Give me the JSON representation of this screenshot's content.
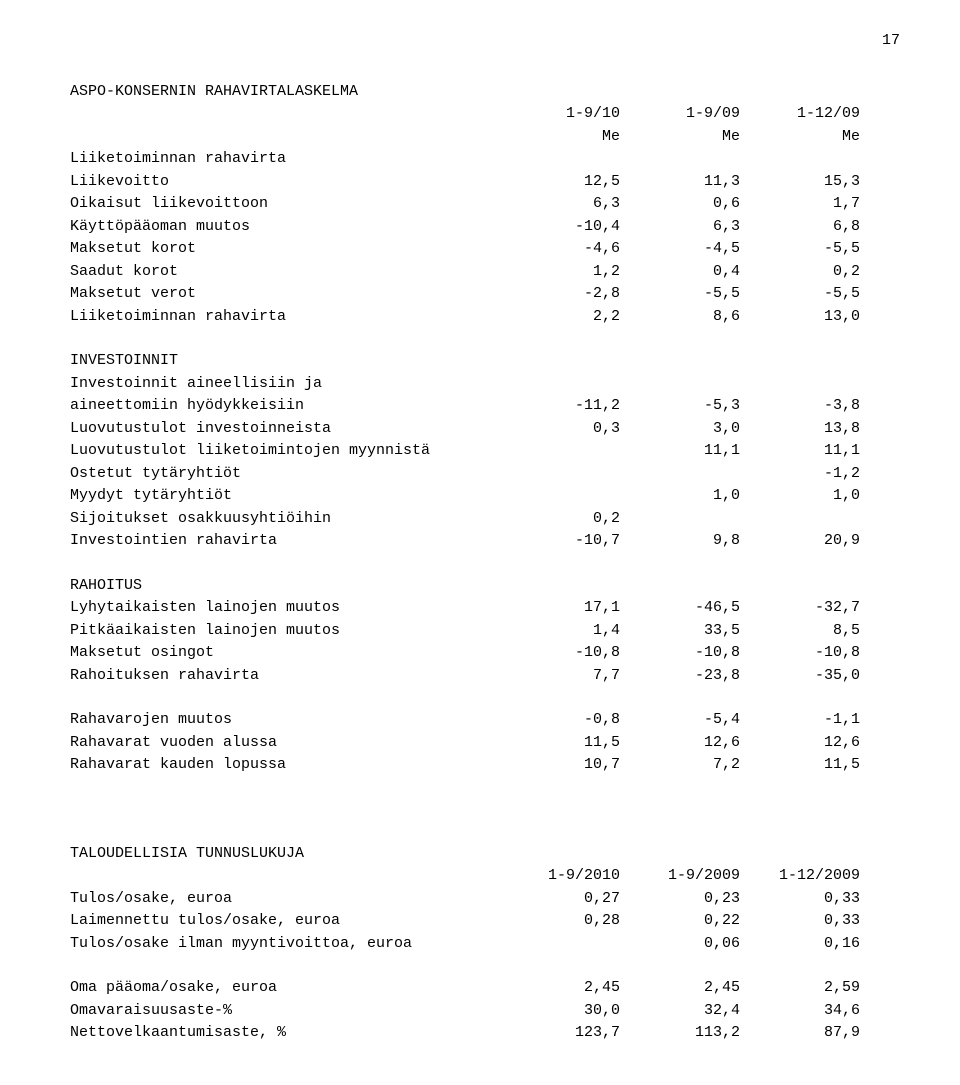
{
  "page_number": "17",
  "title": "ASPO-KONSERNIN RAHAVIRTALASKELMA",
  "periods": {
    "p1": "1-9/10",
    "p2": "1-9/09",
    "p3": "1-12/09"
  },
  "unit": "Me",
  "sec1": {
    "title": "Liiketoiminnan rahavirta",
    "r1": {
      "label": "Liikevoitto",
      "c1": "12,5",
      "c2": "11,3",
      "c3": "15,3"
    },
    "r2": {
      "label": "Oikaisut liikevoittoon",
      "c1": "6,3",
      "c2": "0,6",
      "c3": "1,7"
    },
    "r3": {
      "label": "Käyttöpääoman muutos",
      "c1": "-10,4",
      "c2": "6,3",
      "c3": "6,8"
    },
    "r4": {
      "label": "Maksetut korot",
      "c1": "-4,6",
      "c2": "-4,5",
      "c3": "-5,5"
    },
    "r5": {
      "label": "Saadut korot",
      "c1": "1,2",
      "c2": "0,4",
      "c3": "0,2"
    },
    "r6": {
      "label": "Maksetut verot",
      "c1": "-2,8",
      "c2": "-5,5",
      "c3": "-5,5"
    },
    "r7": {
      "label": "Liiketoiminnan rahavirta",
      "c1": "2,2",
      "c2": "8,6",
      "c3": "13,0"
    }
  },
  "sec2": {
    "title": "INVESTOINNIT",
    "r1_line1": "Investoinnit aineellisiin ja",
    "r1": {
      "label": "aineettomiin hyödykkeisiin",
      "c1": "-11,2",
      "c2": "-5,3",
      "c3": "-3,8"
    },
    "r2": {
      "label": "Luovutustulot investoinneista",
      "c1": "0,3",
      "c2": "3,0",
      "c3": "13,8"
    },
    "r3": {
      "label": "Luovutustulot liiketoimintojen myynnistä",
      "c1": "",
      "c2": "11,1",
      "c3": "11,1"
    },
    "r4": {
      "label": "Ostetut tytäryhtiöt",
      "c1": "",
      "c2": "",
      "c3": "-1,2"
    },
    "r5": {
      "label": "Myydyt tytäryhtiöt",
      "c1": "",
      "c2": "1,0",
      "c3": "1,0"
    },
    "r6": {
      "label": "Sijoitukset osakkuusyhtiöihin",
      "c1": "0,2",
      "c2": "",
      "c3": ""
    },
    "r7": {
      "label": "Investointien rahavirta",
      "c1": "-10,7",
      "c2": "9,8",
      "c3": "20,9"
    }
  },
  "sec3": {
    "title": "RAHOITUS",
    "r1": {
      "label": "Lyhytaikaisten lainojen muutos",
      "c1": "17,1",
      "c2": "-46,5",
      "c3": "-32,7"
    },
    "r2": {
      "label": "Pitkäaikaisten lainojen muutos",
      "c1": "1,4",
      "c2": "33,5",
      "c3": "8,5"
    },
    "r3": {
      "label": "Maksetut osingot",
      "c1": "-10,8",
      "c2": "-10,8",
      "c3": "-10,8"
    },
    "r4": {
      "label": "Rahoituksen rahavirta",
      "c1": "7,7",
      "c2": "-23,8",
      "c3": "-35,0"
    }
  },
  "sec4": {
    "r1": {
      "label": "Rahavarojen muutos",
      "c1": "-0,8",
      "c2": "-5,4",
      "c3": "-1,1"
    },
    "r2": {
      "label": "Rahavarat vuoden alussa",
      "c1": "11,5",
      "c2": "12,6",
      "c3": "12,6"
    },
    "r3": {
      "label": "Rahavarat kauden lopussa",
      "c1": "10,7",
      "c2": "7,2",
      "c3": "11,5"
    }
  },
  "kpi": {
    "title": "TALOUDELLISIA TUNNUSLUKUJA",
    "periods": {
      "p1": "1-9/2010",
      "p2": "1-9/2009",
      "p3": "1-12/2009"
    },
    "r1": {
      "label": "Tulos/osake, euroa",
      "c1": "0,27",
      "c2": "0,23",
      "c3": "0,33"
    },
    "r2": {
      "label": "Laimennettu tulos/osake, euroa",
      "c1": "0,28",
      "c2": "0,22",
      "c3": "0,33"
    },
    "r3": {
      "label": "Tulos/osake ilman myyntivoittoa, euroa",
      "c1": "",
      "c2": "0,06",
      "c3": "0,16"
    },
    "r4": {
      "label": "Oma pääoma/osake, euroa",
      "c1": "2,45",
      "c2": "2,45",
      "c3": "2,59"
    },
    "r5": {
      "label": "Omavaraisuusaste-%",
      "c1": "30,0",
      "c2": "32,4",
      "c3": "34,6"
    },
    "r6": {
      "label": "Nettovelkaantumisaste, %",
      "c1": "123,7",
      "c2": "113,2",
      "c3": "87,9"
    }
  }
}
